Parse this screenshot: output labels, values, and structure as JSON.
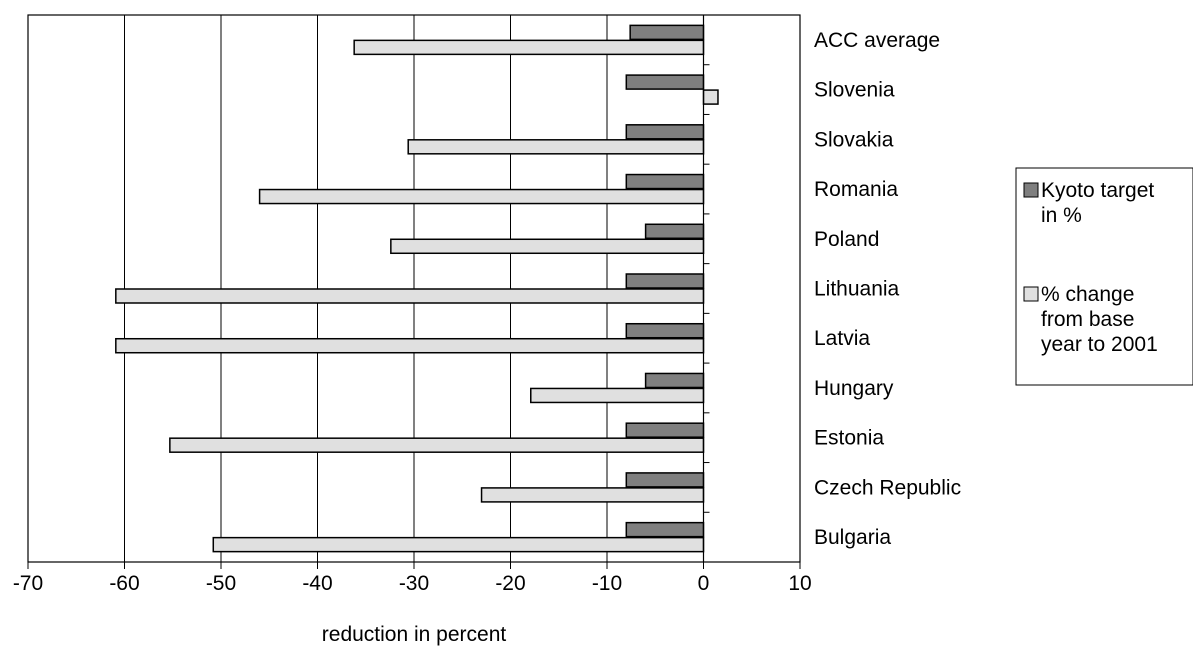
{
  "chart_data": {
    "type": "bar",
    "orientation": "horizontal",
    "categories": [
      "ACC average",
      "Slovenia",
      "Slovakia",
      "Romania",
      "Poland",
      "Lithuania",
      "Latvia",
      "Hungary",
      "Estonia",
      "Czech Republic",
      "Bulgaria"
    ],
    "series": [
      {
        "name": "Kyoto target in %",
        "name_lines": [
          "Kyoto target",
          "in %"
        ],
        "color": "#7f7f7f",
        "values": [
          -7.6,
          -8,
          -8,
          -8,
          -6,
          -8,
          -8,
          -6,
          -8,
          -8,
          -8
        ]
      },
      {
        "name": "% change from base year to 2001",
        "name_lines": [
          "% change",
          "from base",
          "year to 2001"
        ],
        "color": "#e0e0e0",
        "values": [
          -36.2,
          1.5,
          -30.6,
          -46,
          -32.4,
          -60.9,
          -60.9,
          -17.9,
          -55.3,
          -23,
          -50.8
        ]
      }
    ],
    "xlabel": "reduction in percent",
    "xlim": [
      -70,
      10
    ],
    "xticks": [
      "-70",
      "-60",
      "-50",
      "-40",
      "-30",
      "-20",
      "-10",
      "0",
      "10"
    ],
    "xtick_values": [
      -70,
      -60,
      -50,
      -40,
      -30,
      -20,
      -10,
      0,
      10
    ],
    "grid": "vertical",
    "legend_position": "right"
  }
}
